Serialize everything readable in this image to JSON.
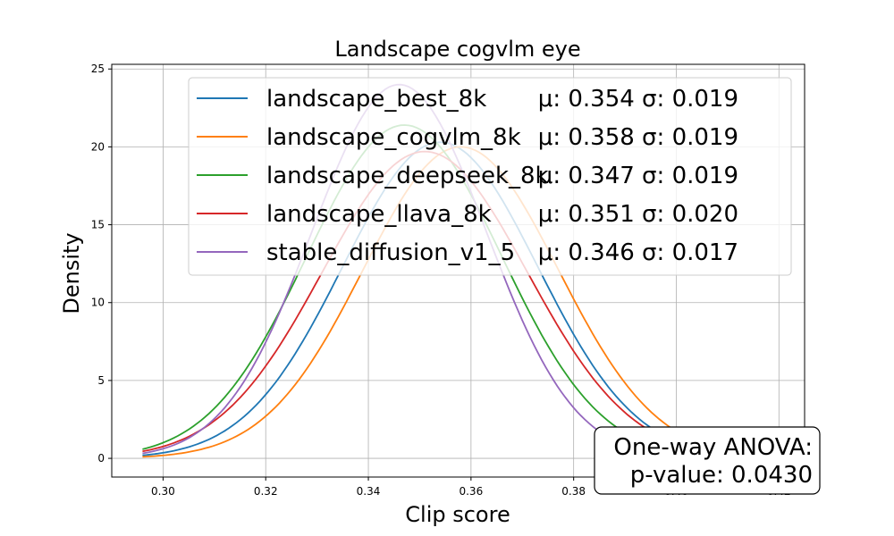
{
  "chart_data": {
    "type": "line",
    "title": "Landscape cogvlm eye",
    "xlabel": "Clip score",
    "ylabel": "Density",
    "xlim": [
      0.29,
      0.425
    ],
    "ylim": [
      -1.2,
      25.3
    ],
    "xticks": [
      "0.30",
      "0.32",
      "0.34",
      "0.36",
      "0.38",
      "0.40",
      "0.42"
    ],
    "xtick_values": [
      0.3,
      0.32,
      0.34,
      0.36,
      0.38,
      0.4,
      0.42
    ],
    "yticks": [
      "0",
      "5",
      "10",
      "15",
      "20",
      "25"
    ],
    "ytick_values": [
      0,
      5,
      10,
      15,
      20,
      25
    ],
    "grid": true,
    "legend_position": "top-right",
    "curve_x_range": [
      0.296,
      0.418
    ],
    "series": [
      {
        "name": "landscape_best_8k",
        "stats": "μ: 0.354 σ: 0.019",
        "mu": 0.354,
        "sigma": 0.019,
        "peak": 20.3,
        "color": "#1f77b4"
      },
      {
        "name": "landscape_cogvlm_8k",
        "stats": "μ: 0.358 σ: 0.019",
        "mu": 0.358,
        "sigma": 0.019,
        "peak": 20.0,
        "color": "#ff7f0e"
      },
      {
        "name": "landscape_deepseek_8k",
        "stats": "μ: 0.347 σ: 0.019",
        "mu": 0.347,
        "sigma": 0.019,
        "peak": 21.4,
        "color": "#2ca02c"
      },
      {
        "name": "landscape_llava_8k",
        "stats": "μ: 0.351 σ: 0.020",
        "mu": 0.351,
        "sigma": 0.02,
        "peak": 19.7,
        "color": "#d62728"
      },
      {
        "name": "stable_diffusion_v1_5",
        "stats": "μ: 0.346 σ: 0.017",
        "mu": 0.346,
        "sigma": 0.017,
        "peak": 24.0,
        "color": "#9467bd"
      }
    ],
    "annotation": {
      "line1": "One-way ANOVA:",
      "line2": "p-value: 0.0430"
    }
  }
}
